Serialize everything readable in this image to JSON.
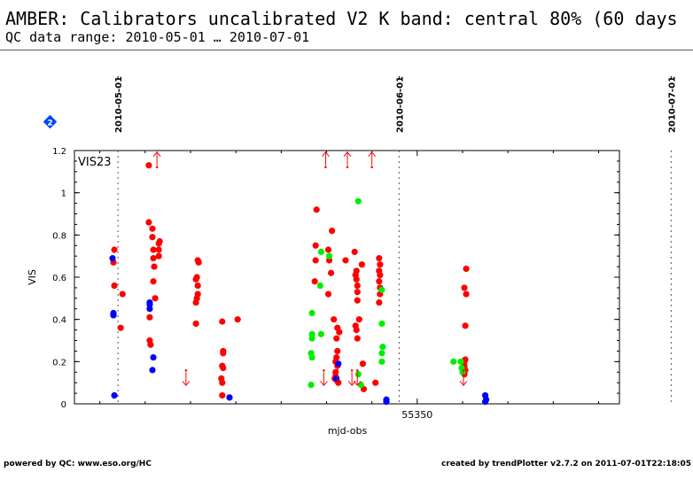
{
  "header": {
    "title": "AMBER: Calibrators uncalibrated V2 K band: central 80% (60 days",
    "subtitle": "QC data range: 2010-05-01 … 2010-07-01"
  },
  "footer": {
    "left": "powered by QC: www.eso.org/HC",
    "right": "created by trendPlotter v2.7.2 on 2011-07-01T22:18:05"
  },
  "colors": {
    "red": "#ff0000",
    "green": "#00ee00",
    "blue": "#0000ff",
    "badge": "#0044ff"
  },
  "icons": {
    "badge": "diamond-badge-icon"
  },
  "chart_data": {
    "type": "scatter",
    "panel_label": "VIS23",
    "xlabel": "mjd-obs",
    "ylabel": "VIS",
    "xlim": [
      55312.2,
      55372.3
    ],
    "ylim": [
      0,
      1.2
    ],
    "x_ticks": [
      55350
    ],
    "x_tick_labels": [
      "55350"
    ],
    "y_ticks": [
      0,
      0.2,
      0.4,
      0.6,
      0.8,
      1.0,
      1.2
    ],
    "y_tick_labels": [
      "0",
      "0.2",
      "0.4",
      "0.6",
      "0.8",
      "1",
      "1.2"
    ],
    "date_markers": [
      {
        "label": "2010-05-01",
        "mjd": 55317
      },
      {
        "label": "2010-06-01",
        "mjd": 55348
      },
      {
        "label": "2010-07-01",
        "mjd": 55378
      }
    ],
    "badge_number": "2",
    "series": [
      {
        "color": "#ff0000",
        "points": [
          [
            55316.6,
            0.73
          ],
          [
            55316.5,
            0.67
          ],
          [
            55316.6,
            0.56
          ],
          [
            55316.5,
            0.42
          ],
          [
            55317.5,
            0.52
          ],
          [
            55317.3,
            0.36
          ],
          [
            55320.4,
            1.13
          ],
          [
            55320.4,
            0.86
          ],
          [
            55320.5,
            0.41
          ],
          [
            55320.5,
            0.3
          ],
          [
            55320.6,
            0.28
          ],
          [
            55320.8,
            0.83
          ],
          [
            55320.8,
            0.79
          ],
          [
            55320.9,
            0.73
          ],
          [
            55320.9,
            0.69
          ],
          [
            55321.0,
            0.65
          ],
          [
            55321.1,
            0.5
          ],
          [
            55320.9,
            0.58
          ],
          [
            55321.5,
            0.76
          ],
          [
            55321.6,
            0.77
          ],
          [
            55321.5,
            0.73
          ],
          [
            55321.5,
            0.7
          ],
          [
            55325.8,
            0.68
          ],
          [
            55325.9,
            0.67
          ],
          [
            55325.7,
            0.6
          ],
          [
            55325.6,
            0.59
          ],
          [
            55325.8,
            0.56
          ],
          [
            55325.8,
            0.52
          ],
          [
            55325.6,
            0.48
          ],
          [
            55325.7,
            0.5
          ],
          [
            55325.6,
            0.38
          ],
          [
            55328.5,
            0.39
          ],
          [
            55328.6,
            0.25
          ],
          [
            55328.6,
            0.24
          ],
          [
            55328.5,
            0.18
          ],
          [
            55328.6,
            0.17
          ],
          [
            55328.4,
            0.12
          ],
          [
            55328.5,
            0.1
          ],
          [
            55328.5,
            0.04
          ],
          [
            55330.2,
            0.4
          ],
          [
            55338.9,
            0.92
          ],
          [
            55338.8,
            0.75
          ],
          [
            55338.8,
            0.68
          ],
          [
            55338.7,
            0.58
          ],
          [
            55340.6,
            0.82
          ],
          [
            55340.2,
            0.73
          ],
          [
            55340.3,
            0.68
          ],
          [
            55340.5,
            0.62
          ],
          [
            55340.2,
            0.52
          ],
          [
            55340.8,
            0.4
          ],
          [
            55341.1,
            0.31
          ],
          [
            55341.2,
            0.36
          ],
          [
            55341.4,
            0.34
          ],
          [
            55341.2,
            0.25
          ],
          [
            55341.1,
            0.22
          ],
          [
            55341.0,
            0.2
          ],
          [
            55341.2,
            0.18
          ],
          [
            55341.0,
            0.15
          ],
          [
            55340.9,
            0.12
          ],
          [
            55341.3,
            0.1
          ],
          [
            55341.0,
            0.13
          ],
          [
            55342.1,
            0.68
          ],
          [
            55343.1,
            0.72
          ],
          [
            55343.3,
            0.63
          ],
          [
            55343.2,
            0.61
          ],
          [
            55343.3,
            0.59
          ],
          [
            55343.4,
            0.56
          ],
          [
            55343.4,
            0.53
          ],
          [
            55343.4,
            0.49
          ],
          [
            55343.2,
            0.37
          ],
          [
            55343.3,
            0.35
          ],
          [
            55343.6,
            0.4
          ],
          [
            55343.9,
            0.66
          ],
          [
            55344.0,
            0.19
          ],
          [
            55344.1,
            0.07
          ],
          [
            55343.4,
            0.31
          ],
          [
            55345.8,
            0.69
          ],
          [
            55345.9,
            0.66
          ],
          [
            55345.8,
            0.63
          ],
          [
            55345.9,
            0.61
          ],
          [
            55345.8,
            0.58
          ],
          [
            55345.9,
            0.55
          ],
          [
            55345.9,
            0.52
          ],
          [
            55345.8,
            0.48
          ],
          [
            55345.4,
            0.1
          ],
          [
            55355.4,
            0.64
          ],
          [
            55355.2,
            0.55
          ],
          [
            55355.4,
            0.52
          ],
          [
            55355.3,
            0.37
          ],
          [
            55355.3,
            0.21
          ],
          [
            55355.2,
            0.2
          ],
          [
            55355.2,
            0.18
          ],
          [
            55355.3,
            0.16
          ],
          [
            55355.2,
            0.14
          ]
        ]
      },
      {
        "color": "#00ee00",
        "points": [
          [
            55338.4,
            0.43
          ],
          [
            55338.4,
            0.33
          ],
          [
            55338.4,
            0.31
          ],
          [
            55338.3,
            0.24
          ],
          [
            55338.4,
            0.22
          ],
          [
            55338.3,
            0.09
          ],
          [
            55339.4,
            0.72
          ],
          [
            55339.3,
            0.56
          ],
          [
            55339.4,
            0.33
          ],
          [
            55340.3,
            0.7
          ],
          [
            55343.5,
            0.96
          ],
          [
            55343.5,
            0.14
          ],
          [
            55343.8,
            0.09
          ],
          [
            55346.1,
            0.54
          ],
          [
            55346.1,
            0.38
          ],
          [
            55346.2,
            0.27
          ],
          [
            55346.1,
            0.24
          ],
          [
            55346.1,
            0.2
          ],
          [
            55354.0,
            0.2
          ],
          [
            55354.8,
            0.2
          ],
          [
            55354.9,
            0.17
          ],
          [
            55355.0,
            0.15
          ]
        ]
      },
      {
        "color": "#0000ff",
        "points": [
          [
            55316.4,
            0.69
          ],
          [
            55316.5,
            0.43
          ],
          [
            55316.5,
            0.42
          ],
          [
            55316.6,
            0.04
          ],
          [
            55320.5,
            0.48
          ],
          [
            55320.5,
            0.47
          ],
          [
            55320.5,
            0.45
          ],
          [
            55320.9,
            0.22
          ],
          [
            55320.8,
            0.16
          ],
          [
            55329.3,
            0.03
          ],
          [
            55341.3,
            0.19
          ],
          [
            55341.1,
            0.12
          ],
          [
            55346.6,
            0.02
          ],
          [
            55346.6,
            0.01
          ],
          [
            55357.5,
            0.04
          ],
          [
            55357.6,
            0.02
          ],
          [
            55357.5,
            0.01
          ]
        ]
      }
    ],
    "limit_markers": [
      {
        "color": "#ff0000",
        "x": 55321.3,
        "y": 1.13,
        "direction": "up"
      },
      {
        "color": "#ff0000",
        "x": 55339.9,
        "y": 1.13,
        "direction": "up"
      },
      {
        "color": "#ff0000",
        "x": 55342.3,
        "y": 1.13,
        "direction": "up"
      },
      {
        "color": "#ff0000",
        "x": 55345.0,
        "y": 1.13,
        "direction": "up"
      },
      {
        "color": "#ff0000",
        "x": 55324.5,
        "y": 0.15,
        "direction": "down"
      },
      {
        "color": "#ff0000",
        "x": 55339.7,
        "y": 0.15,
        "direction": "down"
      },
      {
        "color": "#ff0000",
        "x": 55341.2,
        "y": 0.15,
        "direction": "down"
      },
      {
        "color": "#ff0000",
        "x": 55342.8,
        "y": 0.15,
        "direction": "down"
      },
      {
        "color": "#ff0000",
        "x": 55343.4,
        "y": 0.15,
        "direction": "down"
      },
      {
        "color": "#ff0000",
        "x": 55355.1,
        "y": 0.15,
        "direction": "down"
      }
    ]
  }
}
